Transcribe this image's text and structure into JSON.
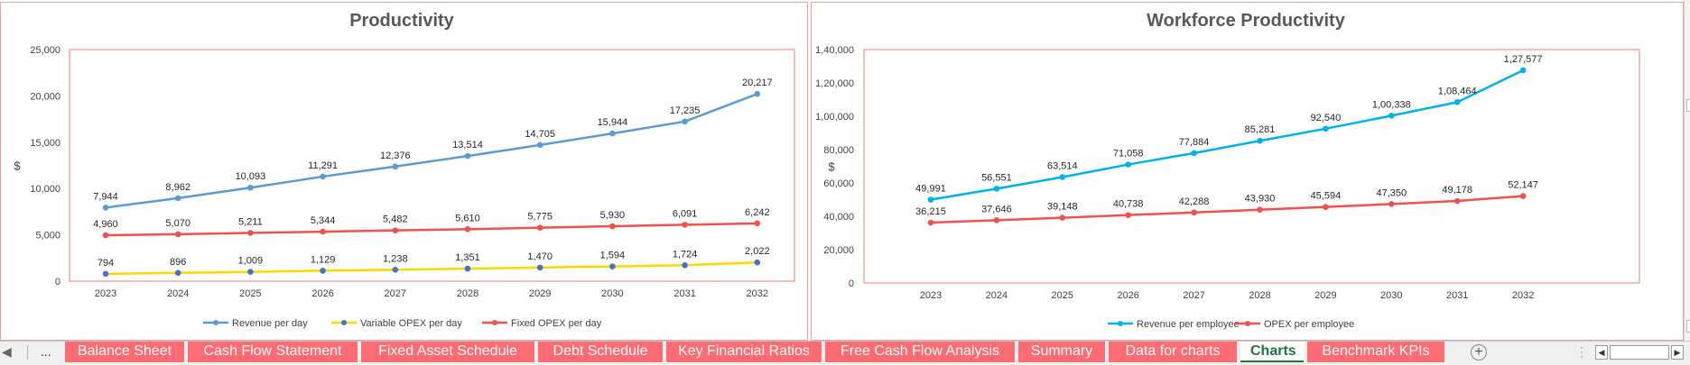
{
  "chart_data": [
    {
      "type": "line",
      "title": "Productivity",
      "ylabel": "$",
      "x": [
        "2023",
        "2024",
        "2025",
        "2026",
        "2027",
        "2028",
        "2029",
        "2030",
        "2031",
        "2032"
      ],
      "ylim": [
        0,
        25000
      ],
      "yticks": [
        "0",
        "5,000",
        "10,000",
        "15,000",
        "20,000",
        "25,000"
      ],
      "legend_position": "bottom",
      "series": [
        {
          "name": "Revenue per day",
          "color": "#5b9bd5",
          "marker_color": "#5b9bd5",
          "values": [
            7944,
            8962,
            10093,
            11291,
            12376,
            13514,
            14705,
            15944,
            17235,
            20217
          ],
          "labels": [
            "7,944",
            "8,962",
            "10,093",
            "11,291",
            "12,376",
            "13,514",
            "14,705",
            "15,944",
            "17,235",
            "20,217"
          ]
        },
        {
          "name": "Variable OPEX per day",
          "color": "#ffd700",
          "marker_color": "#4472c4",
          "values": [
            794,
            896,
            1009,
            1129,
            1238,
            1351,
            1470,
            1594,
            1724,
            2022
          ],
          "labels": [
            "794",
            "896",
            "1,009",
            "1,129",
            "1,238",
            "1,351",
            "1,470",
            "1,594",
            "1,724",
            "2,022"
          ]
        },
        {
          "name": "Fixed OPEX per day",
          "color": "#f0514b",
          "marker_color": "#f0514b",
          "values": [
            4960,
            5070,
            5211,
            5344,
            5482,
            5610,
            5775,
            5930,
            6091,
            6242
          ],
          "labels": [
            "4,960",
            "5,070",
            "5,211",
            "5,344",
            "5,482",
            "5,610",
            "5,775",
            "5,930",
            "6,091",
            "6,242"
          ]
        }
      ]
    },
    {
      "type": "line",
      "title": "Workforce Productivity",
      "ylabel": "$",
      "x": [
        "2023",
        "2024",
        "2025",
        "2026",
        "2027",
        "2028",
        "2029",
        "2030",
        "2031",
        "2032"
      ],
      "ylim": [
        0,
        140000
      ],
      "yticks": [
        "0",
        "20,000",
        "40,000",
        "60,000",
        "80,000",
        "1,00,000",
        "1,20,000",
        "1,40,000"
      ],
      "legend_position": "bottom",
      "series": [
        {
          "name": "Revenue per employee",
          "color": "#00b0f0",
          "marker_color": "#00b0f0",
          "values": [
            49991,
            56551,
            63514,
            71058,
            77884,
            85281,
            92540,
            100338,
            108464,
            127577
          ],
          "labels": [
            "49,991",
            "56,551",
            "63,514",
            "71,058",
            "77,884",
            "85,281",
            "92,540",
            "1,00,338",
            "1,08,464",
            "1,27,577"
          ]
        },
        {
          "name": "OPEX per employee",
          "color": "#f0514b",
          "marker_color": "#f0514b",
          "values": [
            36215,
            37646,
            39148,
            40738,
            42288,
            43930,
            45594,
            47350,
            49178,
            52147
          ],
          "labels": [
            "36,215",
            "37,646",
            "39,148",
            "40,738",
            "42,288",
            "43,930",
            "45,594",
            "47,350",
            "49,178",
            "52,147"
          ]
        }
      ]
    }
  ],
  "sheet_tabs": {
    "ellipsis": "...",
    "tabs": [
      {
        "label": "Balance Sheet",
        "active": false
      },
      {
        "label": "Cash Flow Statement",
        "active": false
      },
      {
        "label": "Fixed Asset Schedule",
        "active": false
      },
      {
        "label": "Debt Schedule",
        "active": false
      },
      {
        "label": "Key Financial Ratios",
        "active": false
      },
      {
        "label": "Free Cash Flow Analysis",
        "active": false
      },
      {
        "label": "Summary",
        "active": false
      },
      {
        "label": "Data for charts",
        "active": false
      },
      {
        "label": "Charts",
        "active": true
      },
      {
        "label": "Benchmark KPIs",
        "active": false
      }
    ],
    "add_sheet": "+"
  }
}
